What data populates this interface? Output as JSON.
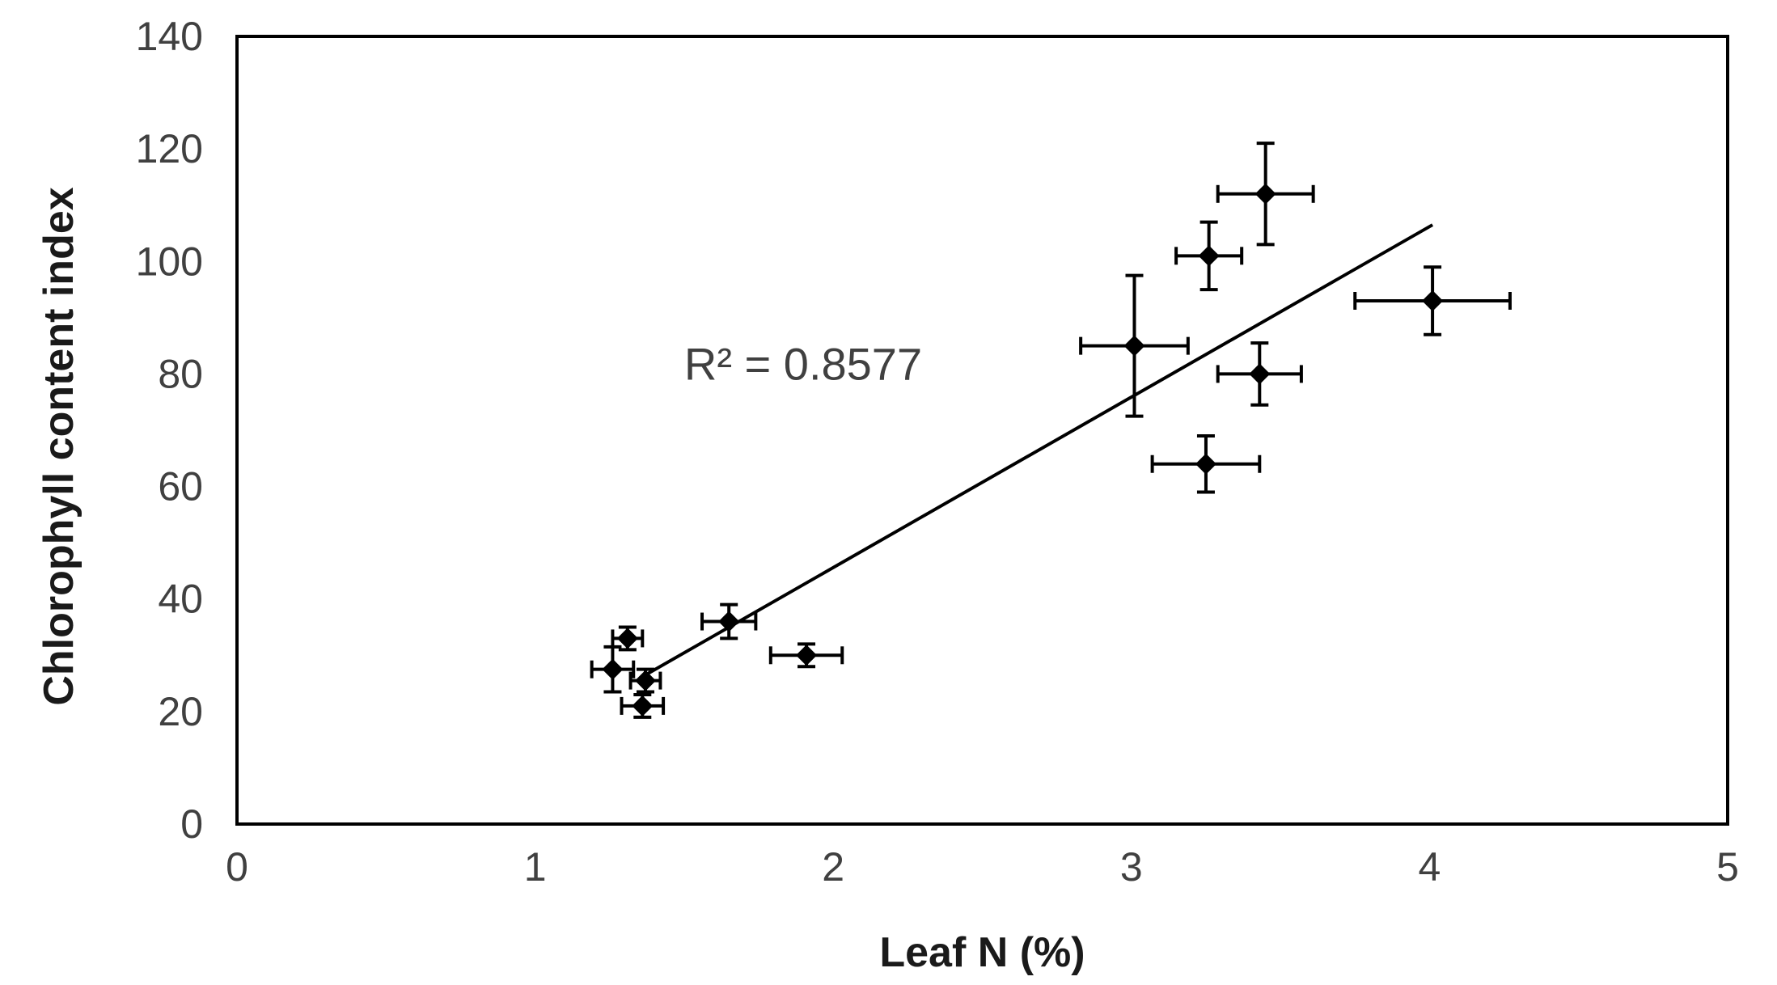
{
  "chart_data": {
    "type": "scatter",
    "title": "",
    "xlabel": "Leaf N (%)",
    "ylabel": "Chlorophyll content index",
    "xlim": [
      0,
      5
    ],
    "ylim": [
      0,
      140
    ],
    "x_ticks": [
      0,
      1,
      2,
      3,
      4,
      5
    ],
    "y_ticks": [
      0,
      20,
      40,
      60,
      80,
      100,
      120,
      140
    ],
    "grid": false,
    "legend": "none",
    "points": [
      {
        "x": 1.26,
        "y": 27.5,
        "x_err": 0.07,
        "y_err": 4
      },
      {
        "x": 1.31,
        "y": 33,
        "x_err": 0.05,
        "y_err": 2
      },
      {
        "x": 1.37,
        "y": 25.5,
        "x_err": 0.05,
        "y_err": 2
      },
      {
        "x": 1.36,
        "y": 21,
        "x_err": 0.07,
        "y_err": 2
      },
      {
        "x": 1.65,
        "y": 36,
        "x_err": 0.09,
        "y_err": 3
      },
      {
        "x": 1.91,
        "y": 30,
        "x_err": 0.12,
        "y_err": 2
      },
      {
        "x": 3.01,
        "y": 85,
        "x_err": 0.18,
        "y_err": 12.5
      },
      {
        "x": 3.25,
        "y": 64,
        "x_err": 0.18,
        "y_err": 5
      },
      {
        "x": 3.26,
        "y": 101,
        "x_err": 0.11,
        "y_err": 6
      },
      {
        "x": 3.43,
        "y": 80,
        "x_err": 0.14,
        "y_err": 5.5
      },
      {
        "x": 3.45,
        "y": 112,
        "x_err": 0.16,
        "y_err": 9
      },
      {
        "x": 4.01,
        "y": 93,
        "x_err": 0.26,
        "y_err": 6
      }
    ],
    "trendline": {
      "x": [
        1.37,
        4.01
      ],
      "y": [
        26.5,
        106.5
      ]
    },
    "annotation": "R² = 0.8577",
    "annotation_pos": {
      "x": 1.5,
      "y": 79
    }
  }
}
